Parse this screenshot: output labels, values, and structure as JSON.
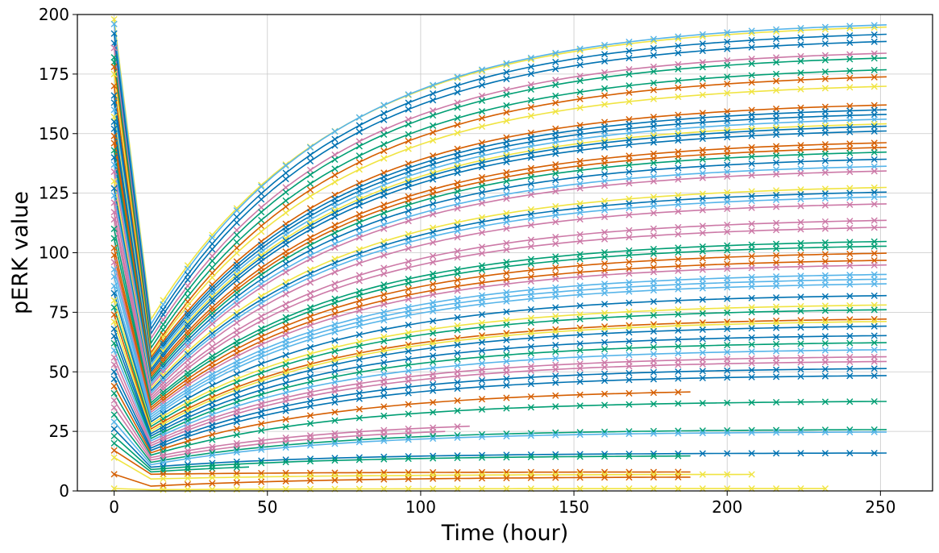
{
  "chart_data": {
    "type": "line",
    "title": "",
    "xlabel": "Time (hour)",
    "ylabel": "pERK value",
    "xlim": [
      -12,
      267
    ],
    "ylim": [
      0,
      200
    ],
    "xticks": [
      0,
      50,
      100,
      150,
      200,
      250
    ],
    "yticks": [
      0,
      25,
      50,
      75,
      100,
      125,
      150,
      175,
      200
    ],
    "grid": true,
    "marker": "x",
    "palette": [
      "#0072B2",
      "#009E73",
      "#D55E00",
      "#CC79A7",
      "#56B4E9",
      "#F0E442"
    ],
    "series_generation": "each series starts at a value at t=0, drops to a minimum near t=12, then rises and saturates at its plateau value; x is time in hours",
    "drop_time": 12,
    "series": [
      {
        "v0": 198,
        "vmin": 72,
        "plateau": 197,
        "end": 253,
        "color": "#F0E442"
      },
      {
        "v0": 196,
        "vmin": 70,
        "plateau": 198,
        "end": 253,
        "color": "#56B4E9"
      },
      {
        "v0": 192,
        "vmin": 68,
        "plateau": 194,
        "end": 253,
        "color": "#0072B2"
      },
      {
        "v0": 188,
        "vmin": 66,
        "plateau": 191,
        "end": 253,
        "color": "#0072B2"
      },
      {
        "v0": 186,
        "vmin": 64,
        "plateau": 186,
        "end": 253,
        "color": "#CC79A7"
      },
      {
        "v0": 182,
        "vmin": 62,
        "plateau": 184,
        "end": 253,
        "color": "#009E73"
      },
      {
        "v0": 180,
        "vmin": 60,
        "plateau": 179,
        "end": 253,
        "color": "#009E73"
      },
      {
        "v0": 178,
        "vmin": 58,
        "plateau": 176,
        "end": 253,
        "color": "#D55E00"
      },
      {
        "v0": 175,
        "vmin": 57,
        "plateau": 172,
        "end": 253,
        "color": "#F0E442"
      },
      {
        "v0": 170,
        "vmin": 56,
        "plateau": 164,
        "end": 253,
        "color": "#D55E00"
      },
      {
        "v0": 166,
        "vmin": 55,
        "plateau": 162,
        "end": 253,
        "color": "#0072B2"
      },
      {
        "v0": 163,
        "vmin": 54,
        "plateau": 160,
        "end": 253,
        "color": "#0072B2"
      },
      {
        "v0": 160,
        "vmin": 53,
        "plateau": 158,
        "end": 253,
        "color": "#56B4E9"
      },
      {
        "v0": 157,
        "vmin": 52,
        "plateau": 156,
        "end": 253,
        "color": "#F0E442"
      },
      {
        "v0": 155,
        "vmin": 51,
        "plateau": 155,
        "end": 253,
        "color": "#0072B2"
      },
      {
        "v0": 152,
        "vmin": 50,
        "plateau": 153,
        "end": 253,
        "color": "#0072B2"
      },
      {
        "v0": 149,
        "vmin": 49,
        "plateau": 148,
        "end": 253,
        "color": "#D55E00"
      },
      {
        "v0": 146,
        "vmin": 48,
        "plateau": 146,
        "end": 253,
        "color": "#D55E00"
      },
      {
        "v0": 143,
        "vmin": 47,
        "plateau": 144,
        "end": 253,
        "color": "#009E73"
      },
      {
        "v0": 140,
        "vmin": 46,
        "plateau": 141,
        "end": 253,
        "color": "#0072B2"
      },
      {
        "v0": 137,
        "vmin": 45,
        "plateau": 138,
        "end": 253,
        "color": "#56B4E9"
      },
      {
        "v0": 134,
        "vmin": 44,
        "plateau": 136,
        "end": 253,
        "color": "#CC79A7"
      },
      {
        "v0": 130,
        "vmin": 43,
        "plateau": 129,
        "end": 253,
        "color": "#F0E442"
      },
      {
        "v0": 127,
        "vmin": 42,
        "plateau": 127,
        "end": 253,
        "color": "#0072B2"
      },
      {
        "v0": 124,
        "vmin": 41,
        "plateau": 125,
        "end": 253,
        "color": "#56B4E9"
      },
      {
        "v0": 121,
        "vmin": 40,
        "plateau": 122,
        "end": 253,
        "color": "#CC79A7"
      },
      {
        "v0": 117,
        "vmin": 39,
        "plateau": 115,
        "end": 253,
        "color": "#CC79A7"
      },
      {
        "v0": 114,
        "vmin": 38,
        "plateau": 112,
        "end": 253,
        "color": "#CC79A7"
      },
      {
        "v0": 110,
        "vmin": 37,
        "plateau": 106,
        "end": 253,
        "color": "#009E73"
      },
      {
        "v0": 106,
        "vmin": 36,
        "plateau": 104,
        "end": 253,
        "color": "#009E73"
      },
      {
        "v0": 102,
        "vmin": 35,
        "plateau": 101,
        "end": 253,
        "color": "#D55E00"
      },
      {
        "v0": 99,
        "vmin": 34,
        "plateau": 98,
        "end": 253,
        "color": "#D55E00"
      },
      {
        "v0": 96,
        "vmin": 33,
        "plateau": 96,
        "end": 253,
        "color": "#CC79A7"
      },
      {
        "v0": 93,
        "vmin": 32,
        "plateau": 92,
        "end": 253,
        "color": "#56B4E9"
      },
      {
        "v0": 90,
        "vmin": 31,
        "plateau": 90,
        "end": 253,
        "color": "#56B4E9"
      },
      {
        "v0": 86,
        "vmin": 30,
        "plateau": 88,
        "end": 253,
        "color": "#56B4E9"
      },
      {
        "v0": 83,
        "vmin": 29,
        "plateau": 83,
        "end": 253,
        "color": "#0072B2"
      },
      {
        "v0": 80,
        "vmin": 28,
        "plateau": 79,
        "end": 253,
        "color": "#F0E442"
      },
      {
        "v0": 77,
        "vmin": 27,
        "plateau": 77,
        "end": 253,
        "color": "#009E73"
      },
      {
        "v0": 74,
        "vmin": 26,
        "plateau": 73,
        "end": 253,
        "color": "#D55E00"
      },
      {
        "v0": 71,
        "vmin": 25,
        "plateau": 72,
        "end": 253,
        "color": "#F0E442"
      },
      {
        "v0": 68,
        "vmin": 24,
        "plateau": 70,
        "end": 253,
        "color": "#0072B2"
      },
      {
        "v0": 65,
        "vmin": 23,
        "plateau": 66,
        "end": 253,
        "color": "#0072B2"
      },
      {
        "v0": 62,
        "vmin": 22,
        "plateau": 63,
        "end": 253,
        "color": "#009E73"
      },
      {
        "v0": 59,
        "vmin": 21,
        "plateau": 60,
        "end": 253,
        "color": "#56B4E9"
      },
      {
        "v0": 56,
        "vmin": 20,
        "plateau": 57,
        "end": 253,
        "color": "#CC79A7"
      },
      {
        "v0": 53,
        "vmin": 19,
        "plateau": 55,
        "end": 253,
        "color": "#CC79A7"
      },
      {
        "v0": 50,
        "vmin": 18,
        "plateau": 52,
        "end": 253,
        "color": "#0072B2"
      },
      {
        "v0": 47,
        "vmin": 17,
        "plateau": 49,
        "end": 253,
        "color": "#0072B2"
      },
      {
        "v0": 44,
        "vmin": 16,
        "plateau": 43,
        "end": 190,
        "color": "#D55E00"
      },
      {
        "v0": 41,
        "vmin": 15,
        "plateau": 38,
        "end": 253,
        "color": "#009E73"
      },
      {
        "v0": 38,
        "vmin": 14,
        "plateau": 30,
        "end": 117,
        "color": "#CC79A7"
      },
      {
        "v0": 35,
        "vmin": 13,
        "plateau": 28,
        "end": 108,
        "color": "#CC79A7"
      },
      {
        "v0": 32,
        "vmin": 12,
        "plateau": 26,
        "end": 253,
        "color": "#009E73"
      },
      {
        "v0": 29,
        "vmin": 11,
        "plateau": 25,
        "end": 253,
        "color": "#56B4E9"
      },
      {
        "v0": 26,
        "vmin": 10,
        "plateau": 16,
        "end": 253,
        "color": "#0072B2"
      },
      {
        "v0": 23,
        "vmin": 9,
        "plateau": 15,
        "end": 190,
        "color": "#009E73"
      },
      {
        "v0": 20,
        "vmin": 8,
        "plateau": 13,
        "end": 45,
        "color": "#009E73"
      },
      {
        "v0": 17,
        "vmin": 7,
        "plateau": 8,
        "end": 190,
        "color": "#D55E00"
      },
      {
        "v0": 14,
        "vmin": 5,
        "plateau": 7,
        "end": 210,
        "color": "#F0E442"
      },
      {
        "v0": 7,
        "vmin": 2,
        "plateau": 6,
        "end": 190,
        "color": "#D55E00"
      },
      {
        "v0": 1,
        "vmin": 0.5,
        "plateau": 1,
        "end": 232,
        "color": "#F0E442"
      }
    ]
  }
}
